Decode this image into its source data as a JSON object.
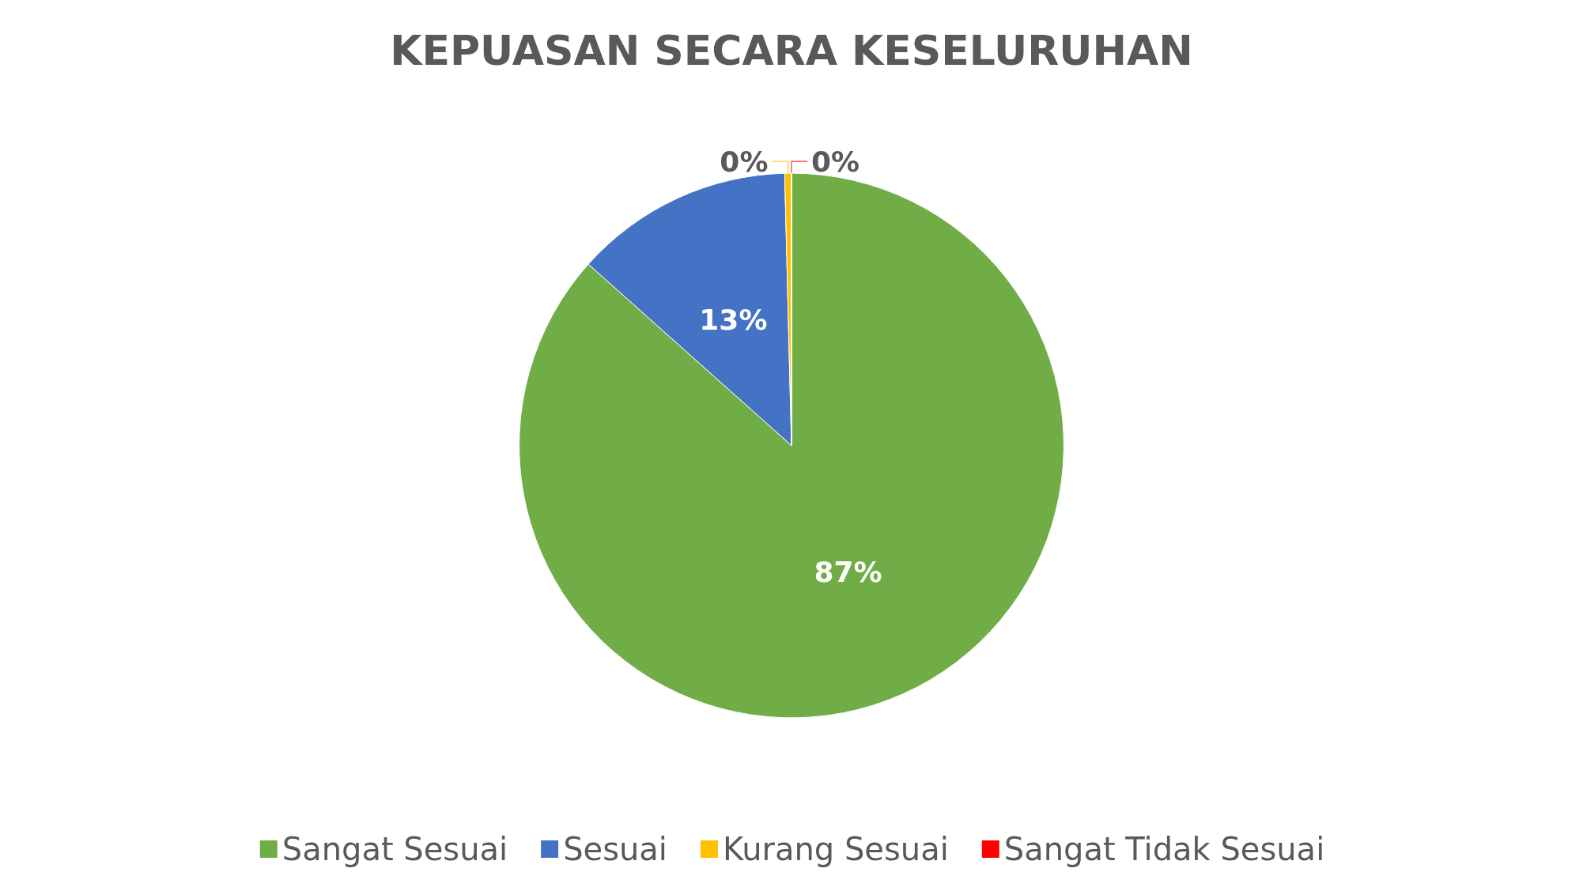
{
  "chart_data": {
    "type": "pie",
    "title": "KEPUASAN SECARA KESELURUHAN",
    "categories": [
      "Sangat Sesuai",
      "Sesuai",
      "Kurang Sesuai",
      "Sangat Tidak Sesuai"
    ],
    "values": [
      86.6,
      13,
      0.4,
      0
    ],
    "colors": [
      "#70ad47",
      "#4472c4",
      "#ffc000",
      "#ff0000"
    ],
    "value_labels": [
      "87%",
      "13%",
      "0%",
      "0%"
    ],
    "legend": "bottom"
  }
}
